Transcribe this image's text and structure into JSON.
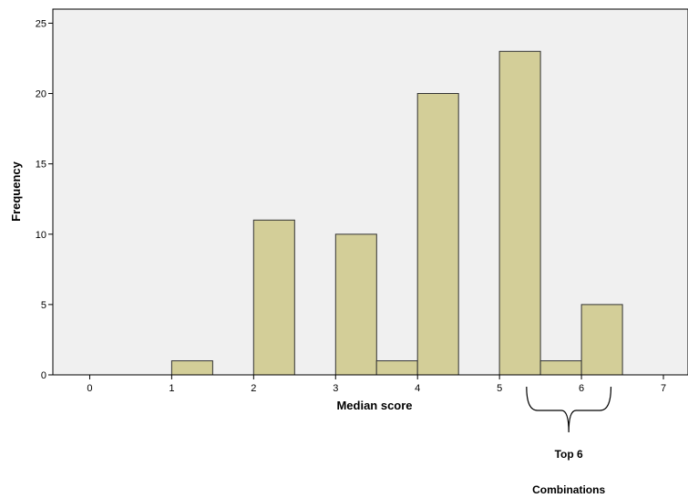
{
  "chart_data": {
    "type": "bar",
    "title": "",
    "xlabel": "Median score",
    "ylabel": "Frequency",
    "xlim": [
      -0.45,
      7.3
    ],
    "ylim": [
      0,
      26
    ],
    "x_ticks": [
      0,
      1,
      2,
      3,
      4,
      5,
      6,
      7
    ],
    "y_ticks": [
      0,
      5,
      10,
      15,
      20,
      25
    ],
    "bar_width": 0.5,
    "grid": false,
    "bar_color": "#d3ce98",
    "bars": [
      {
        "x": 1.0,
        "value": 1
      },
      {
        "x": 2.0,
        "value": 11
      },
      {
        "x": 3.0,
        "value": 10
      },
      {
        "x": 3.5,
        "value": 1
      },
      {
        "x": 4.0,
        "value": 20
      },
      {
        "x": 5.0,
        "value": 23
      },
      {
        "x": 5.5,
        "value": 1
      },
      {
        "x": 6.0,
        "value": 5
      }
    ],
    "annotation": {
      "x_start": 5.33,
      "x_end": 6.36,
      "line1": "Top 6",
      "line2": "Combinations"
    }
  }
}
